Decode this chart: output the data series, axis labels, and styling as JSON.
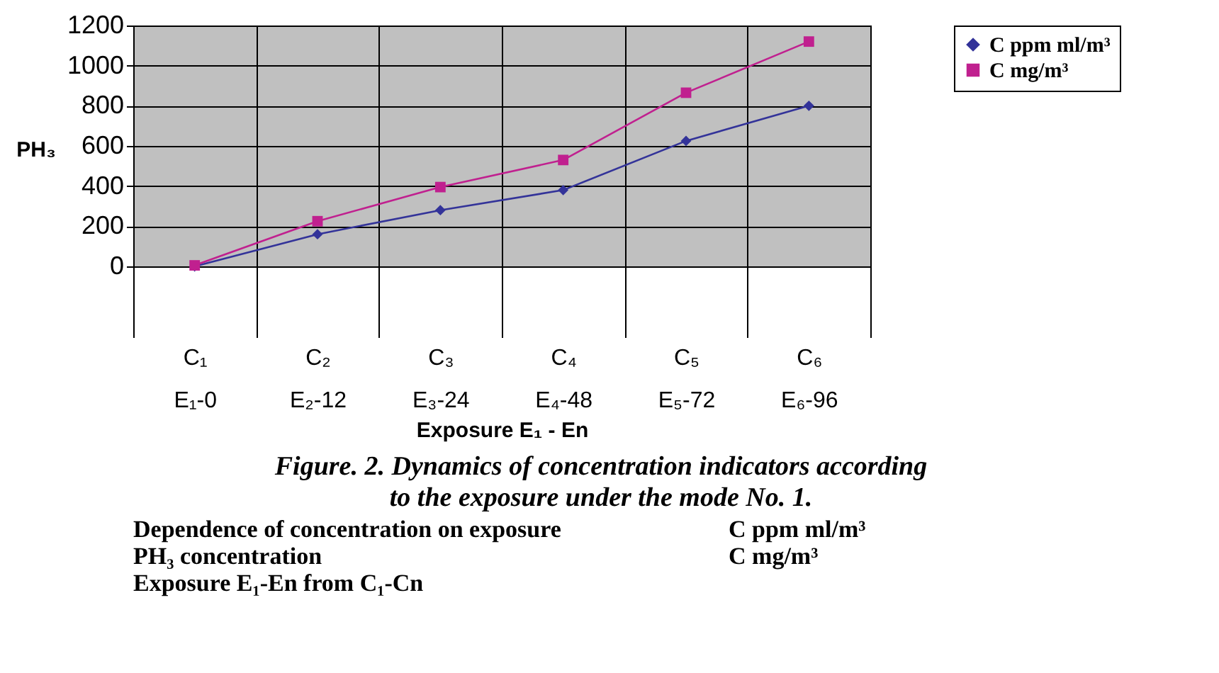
{
  "chart_data": {
    "type": "line",
    "title": "Figure. 2. Dynamics of concentration indicators according\nto the exposure under the mode No. 1.",
    "xlabel": "Exposure E₁ - En",
    "ylabel": "PH₃",
    "categories": [
      "C₁\nE₁-0",
      "C₂\nE₂-12",
      "C₃\nE₃-24",
      "C₄\nE₄-48",
      "C₅\nE₅-72",
      "C₆\nE₆-96"
    ],
    "series": [
      {
        "name": "C ppm ml/m³",
        "color": "#333399",
        "marker": "diamond",
        "values": [
          0,
          160,
          280,
          380,
          625,
          800
        ]
      },
      {
        "name": "C mg/m³",
        "color": "#c0208f",
        "marker": "square",
        "values": [
          5,
          225,
          395,
          530,
          865,
          1120
        ]
      }
    ],
    "ylim": [
      0,
      1200
    ],
    "yticks": [
      0,
      200,
      400,
      600,
      800,
      1000,
      1200
    ],
    "grid": true,
    "legend": "right",
    "annotations": [
      "Dependence of concentration on exposure",
      "PH₃ concentration",
      "Exposure E₁-En from C₁-Cn",
      "C ppm ml/m³",
      "C mg/m³"
    ]
  }
}
